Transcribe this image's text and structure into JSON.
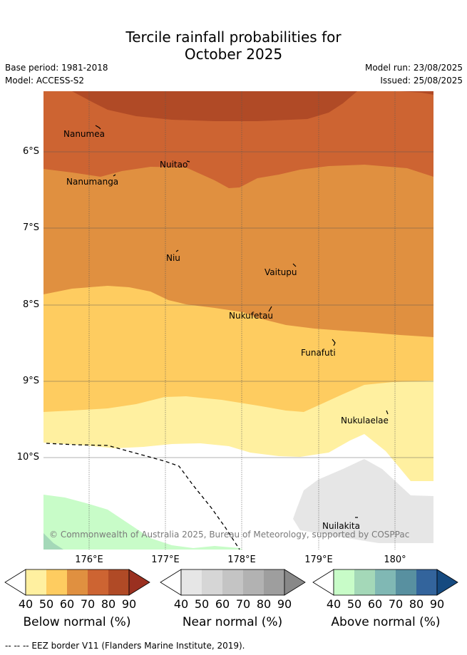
{
  "title": {
    "line1": "Tercile rainfall probabilities for",
    "line2": "October 2025"
  },
  "meta": {
    "base_period": "Base period: 1981-2018",
    "model": "Model: ACCESS-S2",
    "model_run": "Model run: 23/08/2025",
    "issued": "Issued: 25/08/2025"
  },
  "axes": {
    "lat_labels": [
      "6°S",
      "7°S",
      "8°S",
      "9°S",
      "10°S"
    ],
    "lon_labels": [
      "176°E",
      "177°E",
      "178°E",
      "179°E",
      "180°"
    ]
  },
  "places": [
    {
      "name": "Nanumea"
    },
    {
      "name": "Nuitao"
    },
    {
      "name": "Nanumanga"
    },
    {
      "name": "Niu"
    },
    {
      "name": "Vaitupu"
    },
    {
      "name": "Nukufetau"
    },
    {
      "name": "Funafuti"
    },
    {
      "name": "Nukulaelae"
    },
    {
      "name": "Nuilakita"
    }
  ],
  "copyright": "© Commonwealth of Australia 2025, Bureau of Meteorology, supported by COSPPac",
  "legend": {
    "ticks": [
      "40",
      "50",
      "60",
      "70",
      "80",
      "90"
    ],
    "below": {
      "label": "Below normal (%)",
      "colors": [
        "#fff0a0",
        "#fecc60",
        "#e09040",
        "#cd6432",
        "#b04a26",
        "#9a3020"
      ]
    },
    "near": {
      "label": "Near normal (%)",
      "colors": [
        "#e6e6e6",
        "#d6d6d6",
        "#c4c4c4",
        "#b2b2b2",
        "#9e9e9e",
        "#888888"
      ]
    },
    "above": {
      "label": "Above normal (%)",
      "colors": [
        "#c8fcc8",
        "#a4d8b8",
        "#80b8b4",
        "#5890a0",
        "#33649c",
        "#154a80"
      ]
    }
  },
  "footer": "--  --  -- EEZ border V11 (Flanders Marine Institute, 2019)."
}
